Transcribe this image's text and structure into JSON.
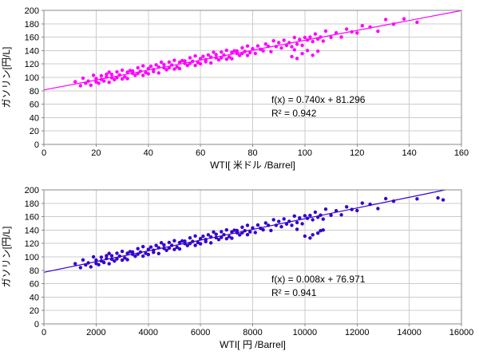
{
  "page": {
    "background": "#ffffff"
  },
  "chart_data": [
    {
      "type": "scatter",
      "title": "",
      "xlabel": "WTI[ 米ドル /Barrel]",
      "ylabel": "ガソリン[円/L]",
      "xlim": [
        0,
        160
      ],
      "ylim": [
        0,
        200
      ],
      "xticks": [
        0,
        20,
        40,
        60,
        80,
        100,
        120,
        140,
        160
      ],
      "yticks": [
        0,
        20,
        40,
        60,
        80,
        100,
        120,
        140,
        160,
        180,
        200
      ],
      "grid": true,
      "legend": "none",
      "point_color": "#ff00ff",
      "line_color": "#ff00ff",
      "trend": {
        "slope": 0.74,
        "intercept": 81.296
      },
      "equation": "f(x) = 0.740x + 81.296",
      "r_squared": "R² = 0.942",
      "points": [
        [
          12,
          93.4
        ],
        [
          14,
          87.6
        ],
        [
          15,
          98.9
        ],
        [
          16,
          91.3
        ],
        [
          17,
          94.4
        ],
        [
          18,
          88.3
        ],
        [
          19,
          103.2
        ],
        [
          20,
          93.2
        ],
        [
          20,
          98.3
        ],
        [
          21,
          91.3
        ],
        [
          22,
          102.5
        ],
        [
          22,
          96.9
        ],
        [
          23,
          94.5
        ],
        [
          24,
          104.7
        ],
        [
          24,
          100.5
        ],
        [
          25,
          92.6
        ],
        [
          25,
          107.9
        ],
        [
          26,
          99.4
        ],
        [
          26,
          104.4
        ],
        [
          27,
          96.5
        ],
        [
          28,
          108.1
        ],
        [
          28,
          99.6
        ],
        [
          29,
          103.7
        ],
        [
          30,
          97.6
        ],
        [
          30,
          110.7
        ],
        [
          31,
          100.8
        ],
        [
          32,
          107.7
        ],
        [
          32,
          98.2
        ],
        [
          33,
          110.1
        ],
        [
          34,
          106.2
        ],
        [
          34,
          109.7
        ],
        [
          35,
          103.1
        ],
        [
          36,
          114.4
        ],
        [
          36,
          106.1
        ],
        [
          37,
          109.2
        ],
        [
          38,
          103.1
        ],
        [
          38,
          117.2
        ],
        [
          39,
          107.3
        ],
        [
          40,
          113.1
        ],
        [
          40,
          105.4
        ],
        [
          41,
          116.5
        ],
        [
          42,
          111.7
        ],
        [
          42,
          108.6
        ],
        [
          43,
          118.7
        ],
        [
          44,
          115.3
        ],
        [
          44,
          106.7
        ],
        [
          45,
          122.7
        ],
        [
          46,
          114.2
        ],
        [
          46,
          119.2
        ],
        [
          47,
          111.3
        ],
        [
          48,
          122.9
        ],
        [
          48,
          114.4
        ],
        [
          49,
          118.5
        ],
        [
          50,
          112.4
        ],
        [
          50,
          125.5
        ],
        [
          51,
          115.6
        ],
        [
          52,
          122.5
        ],
        [
          52,
          113
        ],
        [
          53,
          124.9
        ],
        [
          54,
          121
        ],
        [
          54,
          124.5
        ],
        [
          55,
          117.9
        ],
        [
          56,
          129.2
        ],
        [
          56,
          120.9
        ],
        [
          57,
          124
        ],
        [
          58,
          117.9
        ],
        [
          58,
          132
        ],
        [
          59,
          122.1
        ],
        [
          60,
          127.9
        ],
        [
          60,
          120.2
        ],
        [
          61,
          131.3
        ],
        [
          62,
          126.5
        ],
        [
          62,
          123.4
        ],
        [
          63,
          133.5
        ],
        [
          64,
          130.1
        ],
        [
          64,
          121.5
        ],
        [
          65,
          137.5
        ],
        [
          66,
          129
        ],
        [
          66,
          134
        ],
        [
          67,
          126.1
        ],
        [
          68,
          137.7
        ],
        [
          68,
          129.2
        ],
        [
          69,
          133.3
        ],
        [
          70,
          127.2
        ],
        [
          70,
          140.3
        ],
        [
          71,
          130.4
        ],
        [
          72,
          137.3
        ],
        [
          72,
          127.8
        ],
        [
          73,
          139.7
        ],
        [
          74,
          135.8
        ],
        [
          74,
          139.3
        ],
        [
          75,
          132.7
        ],
        [
          76,
          144
        ],
        [
          76,
          135.7
        ],
        [
          77,
          138.8
        ],
        [
          78,
          132.7
        ],
        [
          78,
          146.8
        ],
        [
          79,
          136.9
        ],
        [
          80,
          142.7
        ],
        [
          81,
          135.7
        ],
        [
          82,
          146.9
        ],
        [
          83,
          142
        ],
        [
          84,
          139.7
        ],
        [
          85,
          149.8
        ],
        [
          86,
          146.3
        ],
        [
          87,
          138.5
        ],
        [
          88,
          154.5
        ],
        [
          89,
          146.1
        ],
        [
          90,
          151.8
        ],
        [
          91,
          143.8
        ],
        [
          92,
          155.5
        ],
        [
          93,
          147.7
        ],
        [
          94,
          151.8
        ],
        [
          95,
          145.7
        ],
        [
          96,
          159.5
        ],
        [
          97,
          149.7
        ],
        [
          98,
          156.5
        ],
        [
          99,
          147.8
        ],
        [
          100,
          159.7
        ],
        [
          101,
          155.7
        ],
        [
          102,
          160
        ],
        [
          103,
          153.4
        ],
        [
          104,
          164.8
        ],
        [
          105,
          157.2
        ],
        [
          106,
          160.2
        ],
        [
          107,
          154.2
        ],
        [
          108,
          169
        ],
        [
          110,
          159.8
        ],
        [
          112,
          166.4
        ],
        [
          114,
          160.2
        ],
        [
          116,
          172
        ],
        [
          118,
          167.9
        ],
        [
          120,
          166.3
        ],
        [
          122,
          177.2
        ],
        [
          125,
          175.2
        ],
        [
          128,
          168.8
        ],
        [
          131,
          186.3
        ],
        [
          134,
          179.4
        ],
        [
          138,
          187.3
        ],
        [
          143,
          182.3
        ],
        [
          95,
          131
        ],
        [
          97,
          128.2
        ],
        [
          99,
          135.5
        ],
        [
          101,
          140.1
        ],
        [
          103,
          133
        ],
        [
          96,
          141.2
        ],
        [
          105,
          139
        ]
      ]
    },
    {
      "type": "scatter",
      "title": "",
      "xlabel": "WTI[ 円 /Barrel]",
      "ylabel": "ガソリン[円/L]",
      "xlim": [
        0,
        16000
      ],
      "ylim": [
        0,
        200
      ],
      "xticks": [
        0,
        2000,
        4000,
        6000,
        8000,
        10000,
        12000,
        14000,
        16000
      ],
      "yticks": [
        0,
        20,
        40,
        60,
        80,
        100,
        120,
        140,
        160,
        180,
        200
      ],
      "grid": true,
      "legend": "none",
      "point_color": "#3300cc",
      "line_color": "#3300cc",
      "trend": {
        "slope": 0.008,
        "intercept": 76.971
      },
      "equation": "f(x) = 0.008x + 76.971",
      "r_squared": "R² = 0.941",
      "points": [
        [
          1200,
          89.8
        ],
        [
          1400,
          84.1
        ],
        [
          1500,
          95.5
        ],
        [
          1600,
          88
        ],
        [
          1700,
          91.1
        ],
        [
          1800,
          85.1
        ],
        [
          1900,
          100
        ],
        [
          2000,
          90.1
        ],
        [
          2000,
          95.2
        ],
        [
          2100,
          88.3
        ],
        [
          2200,
          99.5
        ],
        [
          2200,
          93.9
        ],
        [
          2300,
          91.6
        ],
        [
          2400,
          101.8
        ],
        [
          2400,
          97.6
        ],
        [
          2500,
          89.8
        ],
        [
          2500,
          105.1
        ],
        [
          2600,
          96.7
        ],
        [
          2600,
          101.7
        ],
        [
          2700,
          93.8
        ],
        [
          2800,
          105.5
        ],
        [
          2800,
          97
        ],
        [
          2900,
          101.1
        ],
        [
          3000,
          95.1
        ],
        [
          3000,
          108.2
        ],
        [
          3100,
          98.4
        ],
        [
          3200,
          105.3
        ],
        [
          3200,
          95.8
        ],
        [
          3300,
          107.8
        ],
        [
          3400,
          103.9
        ],
        [
          3400,
          107.4
        ],
        [
          3500,
          100.9
        ],
        [
          3600,
          112.3
        ],
        [
          3600,
          104
        ],
        [
          3700,
          107.1
        ],
        [
          3800,
          101.1
        ],
        [
          3800,
          115.2
        ],
        [
          3900,
          105.3
        ],
        [
          4000,
          111.2
        ],
        [
          4000,
          103.5
        ],
        [
          4100,
          114.7
        ],
        [
          4200,
          109.9
        ],
        [
          4200,
          106.8
        ],
        [
          4300,
          117
        ],
        [
          4400,
          113.6
        ],
        [
          4400,
          105
        ],
        [
          4500,
          121.1
        ],
        [
          4600,
          112.7
        ],
        [
          4600,
          117.7
        ],
        [
          4700,
          109.8
        ],
        [
          4800,
          121.5
        ],
        [
          4800,
          113
        ],
        [
          4900,
          117.1
        ],
        [
          5000,
          111.1
        ],
        [
          5000,
          124.2
        ],
        [
          5100,
          114.4
        ],
        [
          5200,
          121.3
        ],
        [
          5200,
          111.8
        ],
        [
          5300,
          123.8
        ],
        [
          5400,
          119.9
        ],
        [
          5400,
          123.4
        ],
        [
          5500,
          116.9
        ],
        [
          5600,
          128.3
        ],
        [
          5600,
          120
        ],
        [
          5700,
          123.1
        ],
        [
          5800,
          117.1
        ],
        [
          5800,
          131.2
        ],
        [
          5900,
          121.3
        ],
        [
          6000,
          127.2
        ],
        [
          6000,
          119.5
        ],
        [
          6100,
          130.7
        ],
        [
          6200,
          125.9
        ],
        [
          6200,
          122.8
        ],
        [
          6300,
          133
        ],
        [
          6400,
          129.6
        ],
        [
          6400,
          121
        ],
        [
          6500,
          137.1
        ],
        [
          6600,
          128.7
        ],
        [
          6600,
          133.7
        ],
        [
          6700,
          125.8
        ],
        [
          6800,
          137.5
        ],
        [
          6800,
          129
        ],
        [
          6900,
          133.1
        ],
        [
          7000,
          127.1
        ],
        [
          7000,
          140.2
        ],
        [
          7100,
          130.4
        ],
        [
          7200,
          137.3
        ],
        [
          7200,
          127.8
        ],
        [
          7300,
          139.8
        ],
        [
          7400,
          135.9
        ],
        [
          7400,
          139.4
        ],
        [
          7500,
          132.9
        ],
        [
          7600,
          144.3
        ],
        [
          7600,
          136
        ],
        [
          7700,
          139.1
        ],
        [
          7800,
          133.1
        ],
        [
          7800,
          147.2
        ],
        [
          7900,
          137.3
        ],
        [
          8000,
          143.2
        ],
        [
          8100,
          136.3
        ],
        [
          8200,
          147.5
        ],
        [
          8300,
          142.7
        ],
        [
          8400,
          140.4
        ],
        [
          8500,
          150.6
        ],
        [
          8600,
          147.2
        ],
        [
          8700,
          139.4
        ],
        [
          8800,
          155.5
        ],
        [
          8900,
          147.1
        ],
        [
          9000,
          152.9
        ],
        [
          9100,
          145
        ],
        [
          9200,
          156.7
        ],
        [
          9300,
          149
        ],
        [
          9400,
          153.1
        ],
        [
          9500,
          147.1
        ],
        [
          9600,
          161
        ],
        [
          9700,
          151.2
        ],
        [
          9800,
          158.1
        ],
        [
          9900,
          149.4
        ],
        [
          10000,
          161.4
        ],
        [
          10100,
          157.5
        ],
        [
          10200,
          161.8
        ],
        [
          10300,
          155.3
        ],
        [
          10400,
          166.7
        ],
        [
          10500,
          159.2
        ],
        [
          10600,
          162.3
        ],
        [
          10700,
          156.3
        ],
        [
          10800,
          171.2
        ],
        [
          11000,
          162.1
        ],
        [
          11200,
          168.8
        ],
        [
          11400,
          162.7
        ],
        [
          11600,
          174.7
        ],
        [
          11800,
          170.7
        ],
        [
          12000,
          169.2
        ],
        [
          12200,
          180.2
        ],
        [
          12500,
          178.4
        ],
        [
          12800,
          172.2
        ],
        [
          13100,
          186.9
        ],
        [
          13400,
          183.1
        ],
        [
          14300,
          186.6
        ],
        [
          15100,
          188
        ],
        [
          15300,
          185
        ],
        [
          10000,
          131
        ],
        [
          10200,
          128.2
        ],
        [
          10500,
          135.5
        ],
        [
          10700,
          140.1
        ],
        [
          10300,
          133
        ],
        [
          9700,
          141.2
        ],
        [
          10600,
          139
        ]
      ]
    }
  ],
  "style": {
    "grid_color": "#cccccc",
    "frame_color": "#888888",
    "text_color": "#000000"
  }
}
